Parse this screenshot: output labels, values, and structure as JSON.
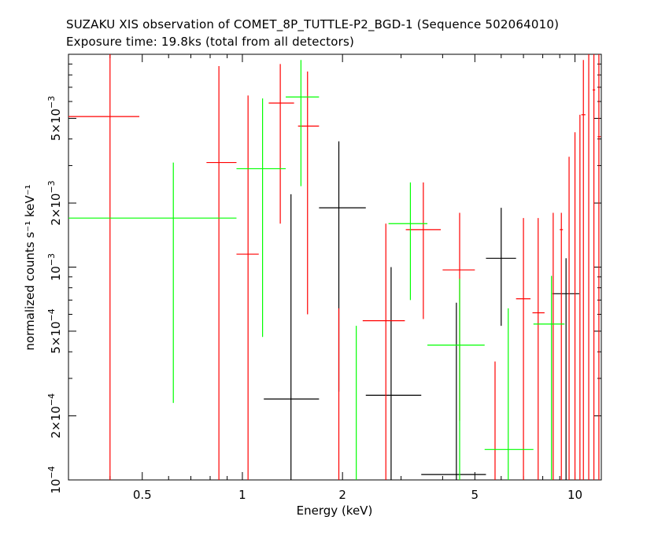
{
  "chart_data": {
    "type": "scatter",
    "title": "SUZAKU XIS observation of COMET_8P_TUTTLE-P2_BGD-1 (Sequence 502064010)",
    "subtitle": "Exposure time: 19.8ks (total from all detectors)",
    "xlabel": "Energy (keV)",
    "ylabel": "normalized counts s⁻¹ keV⁻¹",
    "x_scale": "log",
    "y_scale": "log",
    "xlim": [
      0.3,
      12
    ],
    "ylim": [
      0.0001,
      0.01
    ],
    "x_ticks": [
      {
        "value": 0.5,
        "label": "0.5"
      },
      {
        "value": 1,
        "label": "1"
      },
      {
        "value": 2,
        "label": "2"
      },
      {
        "value": 5,
        "label": "5"
      },
      {
        "value": 10,
        "label": "10"
      }
    ],
    "y_ticks": [
      {
        "value": 0.0001,
        "mant": "10",
        "exp": "−4"
      },
      {
        "value": 0.0002,
        "mant": "2×10",
        "exp": "−4"
      },
      {
        "value": 0.0005,
        "mant": "5×10",
        "exp": "−4"
      },
      {
        "value": 0.001,
        "mant": "10",
        "exp": "−3"
      },
      {
        "value": 0.002,
        "mant": "2×10",
        "exp": "−3"
      },
      {
        "value": 0.005,
        "mant": "5×10",
        "exp": "−3"
      }
    ],
    "grid": false,
    "legend": "none",
    "series": [
      {
        "color": "#000000",
        "points": [
          {
            "x": 1.4,
            "xlo": 1.16,
            "xhi": 1.7,
            "y": 0.00024,
            "ylo": 0.0001,
            "yhi": 0.0022
          },
          {
            "x": 1.95,
            "xlo": 1.7,
            "xhi": 2.35,
            "y": 0.0019,
            "ylo": 0.00026,
            "yhi": 0.0039
          },
          {
            "x": 2.8,
            "xlo": 2.35,
            "xhi": 3.45,
            "y": 0.00025,
            "ylo": 0.0001,
            "yhi": 0.001
          },
          {
            "x": 4.4,
            "xlo": 3.45,
            "xhi": 5.4,
            "y": 0.000106,
            "ylo": 0.0001,
            "yhi": 0.00068
          },
          {
            "x": 6.0,
            "xlo": 5.4,
            "xhi": 6.65,
            "y": 0.0011,
            "ylo": 0.00053,
            "yhi": 0.0019
          },
          {
            "x": 9.4,
            "xlo": 8.55,
            "xhi": 10.3,
            "y": 0.00075,
            "ylo": 0.0001,
            "yhi": 0.0011
          }
        ]
      },
      {
        "color": "#ff0000",
        "points": [
          {
            "x": 0.4,
            "xlo": 0.3,
            "xhi": 0.49,
            "y": 0.0051,
            "ylo": 0.0001,
            "yhi": 0.01
          },
          {
            "x": 0.85,
            "xlo": 0.78,
            "xhi": 0.96,
            "y": 0.0031,
            "ylo": 0.0001,
            "yhi": 0.0088
          },
          {
            "x": 1.04,
            "xlo": 0.96,
            "xhi": 1.12,
            "y": 0.00115,
            "ylo": 0.0001,
            "yhi": 0.0064
          },
          {
            "x": 1.3,
            "xlo": 1.2,
            "xhi": 1.43,
            "y": 0.0059,
            "ylo": 0.0016,
            "yhi": 0.009
          },
          {
            "x": 1.57,
            "xlo": 1.47,
            "xhi": 1.7,
            "y": 0.0046,
            "ylo": 0.0006,
            "yhi": 0.0083
          },
          {
            "x": 1.95,
            "xlo": 1.95,
            "xhi": 1.95,
            "y": 0.0003,
            "ylo": 0.0001,
            "yhi": 0.00064
          },
          {
            "x": 2.7,
            "xlo": 2.3,
            "xhi": 3.08,
            "y": 0.00056,
            "ylo": 0.0001,
            "yhi": 0.0016
          },
          {
            "x": 3.5,
            "xlo": 3.1,
            "xhi": 3.95,
            "y": 0.0015,
            "ylo": 0.00057,
            "yhi": 0.0025
          },
          {
            "x": 4.5,
            "xlo": 4.0,
            "xhi": 5.0,
            "y": 0.00097,
            "ylo": 0.00019,
            "yhi": 0.0018
          },
          {
            "x": 5.75,
            "xlo": 5.75,
            "xhi": 5.75,
            "y": 0.000175,
            "ylo": 0.0001,
            "yhi": 0.00036
          },
          {
            "x": 7.0,
            "xlo": 6.65,
            "xhi": 7.35,
            "y": 0.00071,
            "ylo": 0.0001,
            "yhi": 0.0017
          },
          {
            "x": 7.75,
            "xlo": 7.45,
            "xhi": 8.1,
            "y": 0.00061,
            "ylo": 0.0001,
            "yhi": 0.0017
          },
          {
            "x": 8.6,
            "xlo": 8.6,
            "xhi": 8.6,
            "y": 0.0003,
            "ylo": 0.0001,
            "yhi": 0.0018
          },
          {
            "x": 9.1,
            "xlo": 9.0,
            "xhi": 9.2,
            "y": 0.0015,
            "ylo": 0.0001,
            "yhi": 0.0018
          },
          {
            "x": 9.6,
            "xlo": 9.6,
            "xhi": 9.6,
            "y": 0.0011,
            "ylo": 0.0001,
            "yhi": 0.0033
          },
          {
            "x": 10.0,
            "xlo": 10.0,
            "xhi": 10.0,
            "y": 0.002,
            "ylo": 0.0001,
            "yhi": 0.0043
          },
          {
            "x": 10.35,
            "xlo": 10.35,
            "xhi": 10.35,
            "y": 0.0057,
            "ylo": 0.0001,
            "yhi": 0.0052
          },
          {
            "x": 10.6,
            "xlo": 10.45,
            "xhi": 10.75,
            "y": 0.0052,
            "ylo": 0.0001,
            "yhi": 0.0094
          },
          {
            "x": 11.0,
            "xlo": 11.0,
            "xhi": 11.0,
            "y": 0.0094,
            "ylo": 0.0001,
            "yhi": 0.01
          },
          {
            "x": 11.4,
            "xlo": 11.3,
            "xhi": 11.5,
            "y": 0.0068,
            "ylo": 0.0001,
            "yhi": 0.01
          },
          {
            "x": 11.8,
            "xlo": 11.7,
            "xhi": 11.95,
            "y": 0.0041,
            "ylo": 0.0001,
            "yhi": 0.01
          }
        ]
      },
      {
        "color": "#00ff00",
        "points": [
          {
            "x": 0.62,
            "xlo": 0.3,
            "xhi": 0.96,
            "y": 0.0017,
            "ylo": 0.00023,
            "yhi": 0.0031
          },
          {
            "x": 1.15,
            "xlo": 0.96,
            "xhi": 1.35,
            "y": 0.0029,
            "ylo": 0.00047,
            "yhi": 0.0062
          },
          {
            "x": 1.5,
            "xlo": 1.35,
            "xhi": 1.7,
            "y": 0.0063,
            "ylo": 0.0024,
            "yhi": 0.0094
          },
          {
            "x": 2.2,
            "xlo": 2.2,
            "xhi": 2.2,
            "y": 0.0003,
            "ylo": 0.0001,
            "yhi": 0.00053
          },
          {
            "x": 3.2,
            "xlo": 2.75,
            "xhi": 3.6,
            "y": 0.0016,
            "ylo": 0.0007,
            "yhi": 0.0025
          },
          {
            "x": 4.5,
            "xlo": 3.6,
            "xhi": 5.35,
            "y": 0.00043,
            "ylo": 0.0001,
            "yhi": 0.00088
          },
          {
            "x": 6.3,
            "xlo": 5.35,
            "xhi": 7.5,
            "y": 0.000139,
            "ylo": 0.0001,
            "yhi": 0.00064
          },
          {
            "x": 8.5,
            "xlo": 7.5,
            "xhi": 9.3,
            "y": 0.00054,
            "ylo": 0.0001,
            "yhi": 0.00091
          }
        ]
      }
    ]
  }
}
